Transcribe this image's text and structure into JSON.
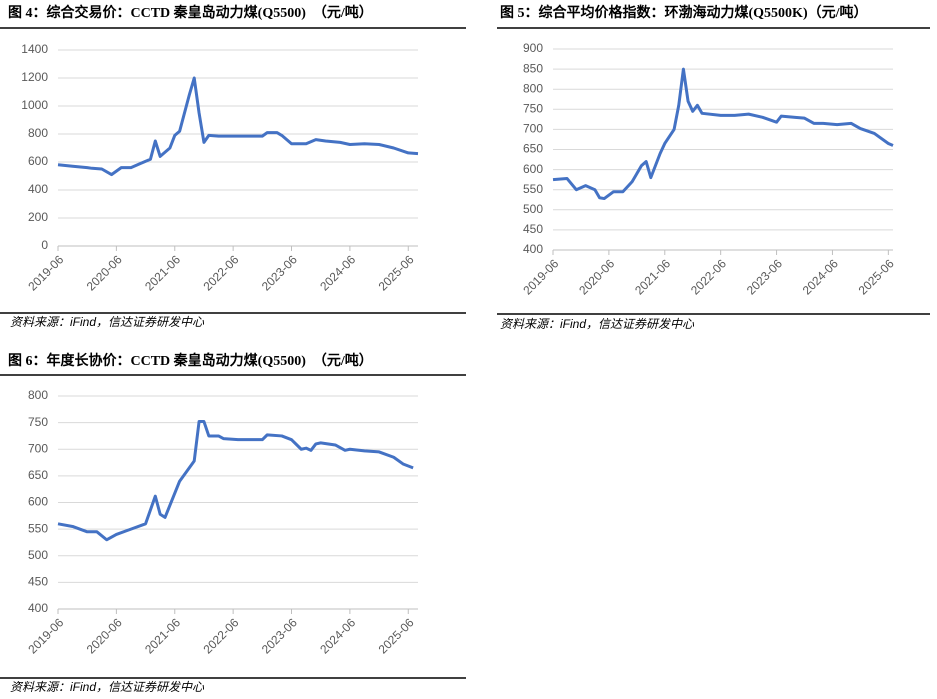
{
  "chart_data": [
    {
      "type": "line",
      "title": "图 4：综合交易价：CCTD 秦皇岛动力煤(Q5500)　（元/吨）",
      "source": "资料来源：iFind，信达证券研发中心",
      "color": "#4472c4",
      "grid": true,
      "x": [
        "2019-06",
        "2019-09",
        "2019-12",
        "2020-01",
        "2020-03",
        "2020-05",
        "2020-07",
        "2020-09",
        "2020-11",
        "2021-01",
        "2021-02",
        "2021-03",
        "2021-05",
        "2021-06",
        "2021-07",
        "2021-09",
        "2021-10",
        "2021-11",
        "2021-12",
        "2022-01",
        "2022-03",
        "2022-06",
        "2022-09",
        "2022-12",
        "2023-01",
        "2023-03",
        "2023-04",
        "2023-06",
        "2023-09",
        "2023-11",
        "2024-01",
        "2024-04",
        "2024-06",
        "2024-09",
        "2024-12",
        "2025-03",
        "2025-06",
        "2025-08"
      ],
      "values": [
        580,
        570,
        560,
        555,
        550,
        510,
        560,
        560,
        590,
        620,
        750,
        640,
        700,
        790,
        820,
        1080,
        1200,
        950,
        740,
        790,
        785,
        785,
        785,
        785,
        810,
        810,
        790,
        730,
        730,
        760,
        750,
        740,
        725,
        730,
        725,
        700,
        665,
        660
      ],
      "xlim": [
        "2019-06",
        "2025-08"
      ],
      "xticks": [
        "2019-06",
        "2020-06",
        "2021-06",
        "2022-06",
        "2023-06",
        "2024-06",
        "2025-06"
      ],
      "ylim": [
        0,
        1400
      ],
      "yticks": [
        0,
        200,
        400,
        600,
        800,
        1000,
        1200,
        1400
      ]
    },
    {
      "type": "line",
      "title": "图 5：综合平均价格指数：环渤海动力煤(Q5500K)（元/吨）",
      "source": "资料来源：iFind，信达证券研发中心",
      "color": "#4472c4",
      "grid": true,
      "x": [
        "2019-06",
        "2019-09",
        "2019-11",
        "2020-01",
        "2020-03",
        "2020-04",
        "2020-05",
        "2020-07",
        "2020-09",
        "2020-11",
        "2021-01",
        "2021-02",
        "2021-03",
        "2021-05",
        "2021-06",
        "2021-08",
        "2021-09",
        "2021-10",
        "2021-11",
        "2021-12",
        "2022-01",
        "2022-02",
        "2022-06",
        "2022-09",
        "2022-12",
        "2023-03",
        "2023-06",
        "2023-07",
        "2023-10",
        "2023-12",
        "2024-02",
        "2024-04",
        "2024-07",
        "2024-10",
        "2024-12",
        "2025-03",
        "2025-06",
        "2025-07"
      ],
      "values": [
        575,
        578,
        550,
        560,
        550,
        530,
        528,
        545,
        545,
        570,
        610,
        620,
        580,
        640,
        665,
        700,
        760,
        850,
        770,
        745,
        760,
        740,
        735,
        735,
        738,
        730,
        718,
        733,
        730,
        728,
        715,
        715,
        712,
        715,
        702,
        690,
        665,
        660
      ],
      "xlim": [
        "2019-06",
        "2025-07"
      ],
      "xticks": [
        "2019-06",
        "2020-06",
        "2021-06",
        "2022-06",
        "2023-06",
        "2024-06",
        "2025-06"
      ],
      "ylim": [
        400,
        900
      ],
      "yticks": [
        400,
        450,
        500,
        550,
        600,
        650,
        700,
        750,
        800,
        850,
        900
      ]
    },
    {
      "type": "line",
      "title": "图 6：年度长协价：CCTD 秦皇岛动力煤(Q5500)　（元/吨）",
      "source": "资料来源：iFind，信达证券研发中心",
      "color": "#4472c4",
      "grid": true,
      "x": [
        "2019-06",
        "2019-09",
        "2019-12",
        "2020-02",
        "2020-04",
        "2020-06",
        "2020-09",
        "2020-12",
        "2021-02",
        "2021-03",
        "2021-04",
        "2021-07",
        "2021-10",
        "2021-11",
        "2021-12",
        "2022-01",
        "2022-03",
        "2022-04",
        "2022-07",
        "2022-12",
        "2023-01",
        "2023-04",
        "2023-06",
        "2023-08",
        "2023-09",
        "2023-10",
        "2023-11",
        "2023-12",
        "2024-03",
        "2024-05",
        "2024-06",
        "2024-09",
        "2024-12",
        "2025-03",
        "2025-05",
        "2025-07"
      ],
      "values": [
        560,
        555,
        545,
        545,
        530,
        540,
        550,
        560,
        612,
        578,
        572,
        640,
        678,
        752,
        752,
        725,
        725,
        720,
        718,
        718,
        727,
        725,
        718,
        700,
        702,
        698,
        710,
        712,
        708,
        698,
        700,
        697,
        695,
        685,
        672,
        665
      ],
      "xlim": [
        "2019-06",
        "2025-08"
      ],
      "xticks": [
        "2019-06",
        "2020-06",
        "2021-06",
        "2022-06",
        "2023-06",
        "2024-06",
        "2025-06"
      ],
      "ylim": [
        400,
        800
      ],
      "yticks": [
        400,
        450,
        500,
        550,
        600,
        650,
        700,
        750,
        800
      ]
    }
  ]
}
